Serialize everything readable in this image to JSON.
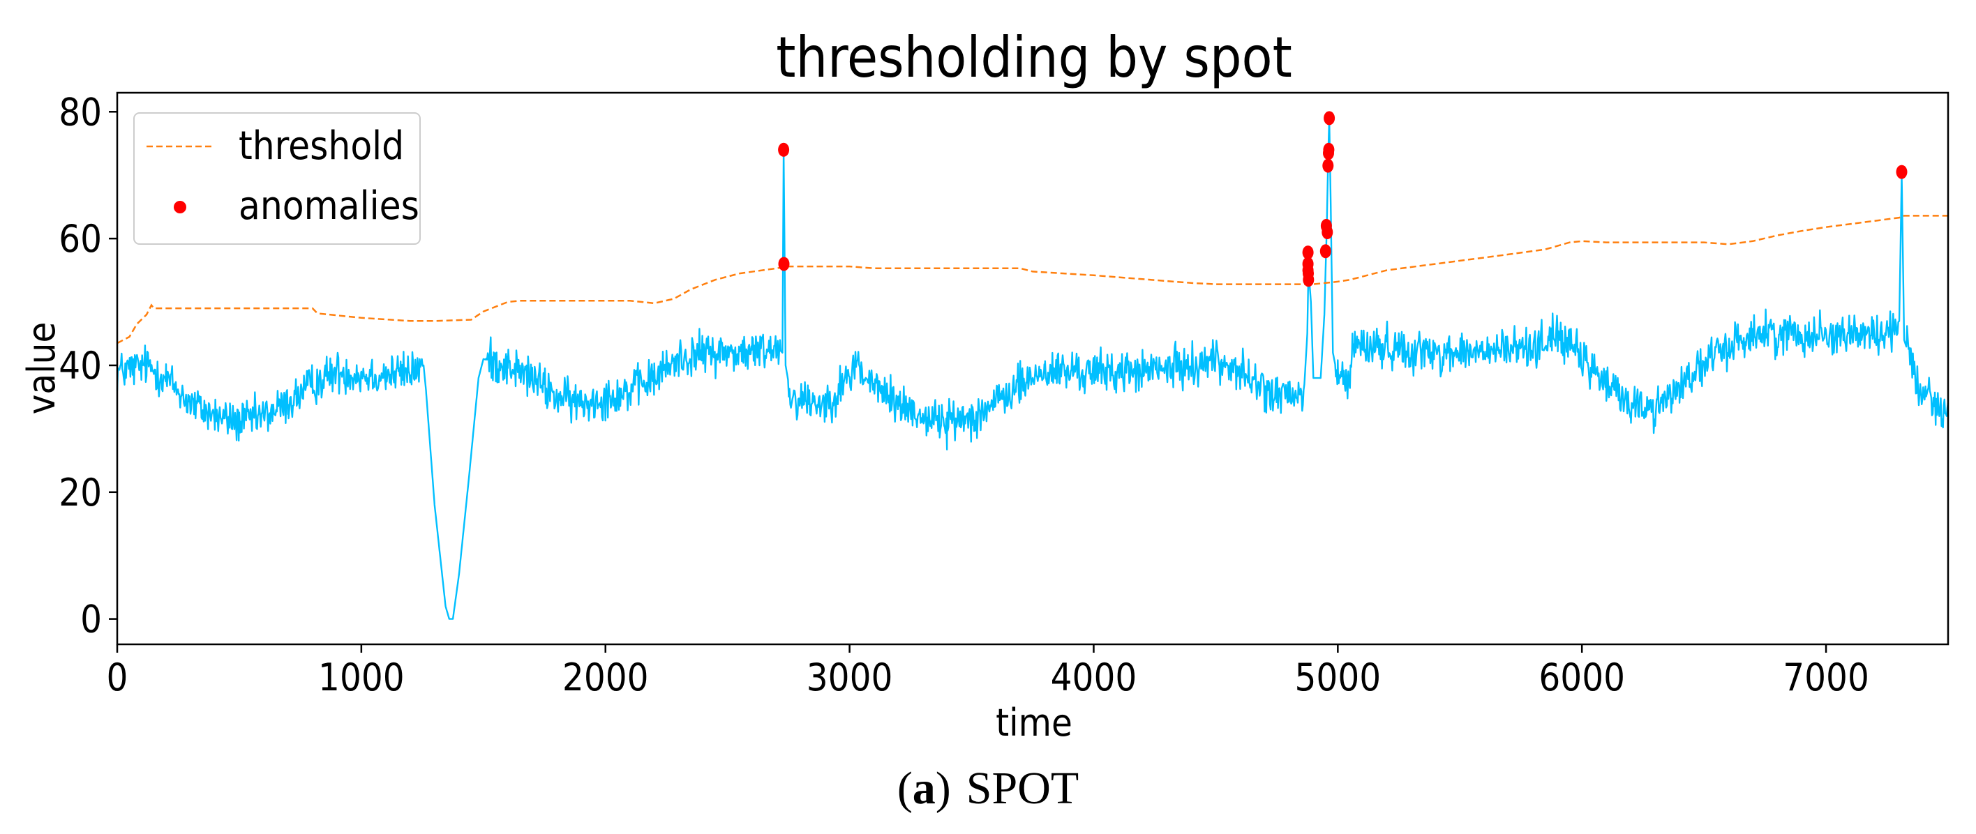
{
  "chart_data": {
    "type": "line",
    "title": "thresholding by spot",
    "xlabel": "time",
    "ylabel": "value",
    "xlim": [
      0,
      7500
    ],
    "ylim": [
      -4,
      83
    ],
    "x_ticks": [
      0,
      1000,
      2000,
      3000,
      4000,
      5000,
      6000,
      7000
    ],
    "y_ticks": [
      0,
      20,
      40,
      60,
      80
    ],
    "legend_position": "top-left",
    "colors": {
      "signal": "#00bfff",
      "threshold": "#ff7f0e",
      "anomalies": "#ff0000",
      "frame": "#000000"
    },
    "series": [
      {
        "name": "value",
        "style": "solid",
        "in_legend": false,
        "profile": [
          [
            0,
            39
          ],
          [
            120,
            40
          ],
          [
            200,
            38
          ],
          [
            300,
            34
          ],
          [
            400,
            32
          ],
          [
            500,
            31
          ],
          [
            600,
            32
          ],
          [
            700,
            34
          ],
          [
            800,
            37
          ],
          [
            900,
            39
          ],
          [
            1000,
            38.5
          ],
          [
            1100,
            38.5
          ],
          [
            1200,
            39
          ],
          [
            1255,
            40
          ],
          [
            1265,
            36
          ],
          [
            1300,
            18
          ],
          [
            1345,
            2
          ],
          [
            1360,
            0
          ],
          [
            1375,
            0
          ],
          [
            1400,
            7
          ],
          [
            1440,
            22
          ],
          [
            1480,
            38
          ],
          [
            1500,
            41
          ],
          [
            1600,
            40
          ],
          [
            1700,
            38
          ],
          [
            1800,
            35
          ],
          [
            1900,
            34
          ],
          [
            2000,
            35
          ],
          [
            2100,
            36
          ],
          [
            2200,
            38
          ],
          [
            2300,
            41
          ],
          [
            2400,
            42
          ],
          [
            2600,
            42
          ],
          [
            2700,
            43
          ],
          [
            2725,
            42
          ],
          [
            2730,
            74
          ],
          [
            2738,
            40
          ],
          [
            2760,
            35
          ],
          [
            2900,
            34
          ],
          [
            3000,
            38
          ],
          [
            3030,
            41
          ],
          [
            3060,
            38
          ],
          [
            3200,
            34
          ],
          [
            3300,
            32
          ],
          [
            3400,
            31
          ],
          [
            3500,
            32
          ],
          [
            3600,
            34
          ],
          [
            3700,
            37
          ],
          [
            3800,
            39
          ],
          [
            4000,
            39
          ],
          [
            4200,
            39
          ],
          [
            4400,
            40
          ],
          [
            4500,
            41
          ],
          [
            4600,
            39
          ],
          [
            4700,
            36
          ],
          [
            4800,
            35
          ],
          [
            4860,
            35
          ],
          [
            4875,
            45
          ],
          [
            4880,
            55
          ],
          [
            4890,
            50
          ],
          [
            4900,
            38
          ],
          [
            4930,
            38
          ],
          [
            4945,
            48
          ],
          [
            4955,
            62
          ],
          [
            4960,
            72
          ],
          [
            4965,
            79
          ],
          [
            4970,
            68
          ],
          [
            4980,
            42
          ],
          [
            5000,
            38
          ],
          [
            5050,
            38
          ],
          [
            5060,
            43
          ],
          [
            5200,
            43
          ],
          [
            5400,
            42
          ],
          [
            5600,
            42
          ],
          [
            5800,
            43
          ],
          [
            5900,
            45
          ],
          [
            6000,
            41
          ],
          [
            6100,
            37
          ],
          [
            6200,
            34
          ],
          [
            6300,
            33
          ],
          [
            6400,
            37
          ],
          [
            6500,
            40
          ],
          [
            6600,
            43
          ],
          [
            6700,
            45
          ],
          [
            6900,
            45
          ],
          [
            7100,
            45
          ],
          [
            7250,
            45
          ],
          [
            7300,
            47
          ],
          [
            7310,
            70
          ],
          [
            7320,
            44
          ],
          [
            7380,
            37
          ],
          [
            7450,
            34
          ],
          [
            7500,
            33
          ]
        ],
        "noise_amplitude": 3.2
      },
      {
        "name": "threshold",
        "style": "dashed",
        "x": [
          0,
          50,
          80,
          120,
          140,
          150,
          800,
          820,
          1000,
          1200,
          1300,
          1450,
          1500,
          1600,
          1650,
          1700,
          2100,
          2200,
          2280,
          2350,
          2450,
          2550,
          2700,
          2750,
          3000,
          3100,
          3700,
          3750,
          4000,
          4200,
          4400,
          4500,
          4900,
          5000,
          5050,
          5100,
          5200,
          5300,
          5400,
          5500,
          5600,
          5700,
          5850,
          5950,
          6000,
          6100,
          6500,
          6600,
          6700,
          6800,
          6900,
          7000,
          7100,
          7200,
          7300,
          7320,
          7500
        ],
        "values": [
          43.5,
          44.5,
          46.5,
          48,
          49.5,
          49,
          49,
          48.2,
          47.5,
          47,
          47,
          47.2,
          48.5,
          50,
          50.2,
          50.2,
          50.2,
          49.8,
          50.5,
          52,
          53.5,
          54.5,
          55.3,
          55.6,
          55.6,
          55.3,
          55.3,
          54.8,
          54.2,
          53.6,
          53,
          52.8,
          52.8,
          53.2,
          53.5,
          54,
          55,
          55.5,
          56,
          56.5,
          57,
          57.5,
          58.3,
          59.4,
          59.6,
          59.4,
          59.4,
          59.1,
          59.6,
          60.5,
          61.2,
          61.8,
          62.3,
          62.8,
          63.3,
          63.6,
          63.6
        ]
      },
      {
        "name": "anomalies",
        "style": "markers",
        "x": [
          2730,
          2731,
          4878,
          4878,
          4878,
          4879,
          4880,
          4950,
          4953,
          4957,
          4960,
          4962,
          4963,
          4965,
          7310
        ],
        "values": [
          74,
          56,
          57.8,
          56,
          55,
          54.5,
          53.5,
          58,
          62,
          61,
          71.5,
          73.5,
          74,
          79,
          70.5
        ]
      }
    ],
    "legend": {
      "threshold": "threshold",
      "anomalies": "anomalies"
    }
  },
  "caption": {
    "label": "(a)",
    "label_letter": "a",
    "text": "SPOT"
  }
}
